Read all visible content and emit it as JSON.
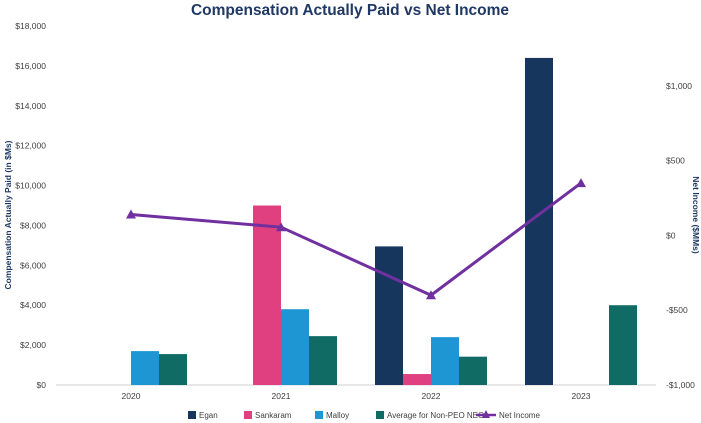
{
  "chart_data": {
    "type": "bar",
    "title": "Compensation Actually Paid vs Net Income",
    "categories": [
      "2020",
      "2021",
      "2022",
      "2023"
    ],
    "ylabel": "Compensation Actually Paid (in $Ms)",
    "y2label": "Net Income ($MMs)",
    "ylim": [
      0,
      18000
    ],
    "y2lim": [
      -1000,
      1400
    ],
    "yticks": [
      "$0",
      "$2,000",
      "$4,000",
      "$6,000",
      "$8,000",
      "$10,000",
      "$12,000",
      "$14,000",
      "$16,000",
      "$18,000"
    ],
    "y2ticks": [
      "-$1,000",
      "-$500",
      "$0",
      "$500",
      "$1,000"
    ],
    "series": [
      {
        "name": "Egan",
        "kind": "bar",
        "color": "#17365d",
        "values": [
          null,
          null,
          6950,
          16400
        ]
      },
      {
        "name": "Sankaram",
        "kind": "bar",
        "color": "#e0407f",
        "values": [
          null,
          9000,
          550,
          null
        ]
      },
      {
        "name": "Malloy",
        "kind": "bar",
        "color": "#1f96d4",
        "values": [
          1700,
          3800,
          2400,
          null
        ]
      },
      {
        "name": "Average for Non-PEO NEOs",
        "kind": "bar",
        "color": "#0f6b63",
        "values": [
          1550,
          2450,
          1420,
          4000
        ]
      },
      {
        "name": "Net Income",
        "kind": "line",
        "axis": "right",
        "color": "#7030a0",
        "values": [
          140,
          55,
          -400,
          350
        ]
      }
    ]
  }
}
